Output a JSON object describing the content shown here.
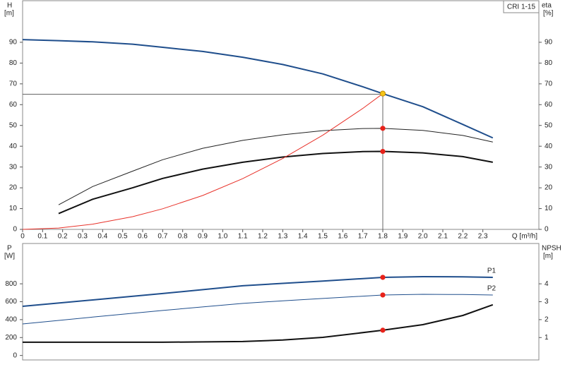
{
  "chart_data": [
    {
      "type": "line",
      "title": "CRI 1-15",
      "ylabel": "H",
      "yunit": "[m]",
      "y2label": "eta",
      "y2unit": "[%]",
      "xlabel": "Q [m³/h]",
      "xlim": [
        0,
        2.58
      ],
      "ylim": [
        0,
        110
      ],
      "y2lim": [
        0,
        110
      ],
      "xticks": [
        0,
        0.1,
        0.2,
        0.3,
        0.4,
        0.5,
        0.6,
        0.7,
        0.8,
        0.9,
        {
          "value": 1,
          "label": "1.0"
        },
        1.1,
        1.2,
        1.3,
        1.4,
        1.5,
        1.6,
        1.7,
        1.8,
        1.9,
        {
          "value": 2,
          "label": "2.0"
        },
        2.1,
        2.2,
        2.3
      ],
      "yticks": [
        0,
        10,
        20,
        30,
        40,
        50,
        60,
        70,
        80,
        90
      ],
      "y2ticks": [
        0,
        10,
        20,
        30,
        40,
        50,
        60,
        70,
        80,
        90
      ],
      "grid": false,
      "x": [
        0,
        0.18,
        0.35,
        0.55,
        0.7,
        0.9,
        1.1,
        1.3,
        1.5,
        1.7,
        1.8,
        2.0,
        2.2,
        2.35
      ],
      "series": [
        {
          "color": "#1f4e8c",
          "width": 2,
          "values": [
            91.3,
            90.8,
            90.2,
            89.1,
            87.6,
            85.6,
            82.8,
            79.3,
            74.8,
            68.6,
            65.3,
            59,
            50.5,
            44
          ]
        },
        {
          "color": "#222222",
          "width": 1,
          "axis": "y2",
          "values": [
            null,
            11.8,
            20.6,
            28,
            33.5,
            39,
            42.8,
            45.5,
            47.5,
            48.5,
            48.6,
            47.6,
            45.2,
            42
          ]
        },
        {
          "color": "#111111",
          "width": 2,
          "axis": "y2",
          "values": [
            null,
            7.6,
            14.5,
            20,
            24.5,
            29,
            32.3,
            34.8,
            36.5,
            37.4,
            37.5,
            36.8,
            35,
            32.3
          ]
        },
        {
          "color": "#e8322a",
          "width": 1,
          "values": [
            0,
            0.65,
            2.5,
            6.1,
            9.9,
            16.3,
            24.4,
            34.1,
            45.3,
            58.2,
            65.3,
            null,
            null,
            null
          ]
        }
      ],
      "crosshair": {
        "x": 1.8,
        "y": 65
      },
      "markers": [
        {
          "x": 1.8,
          "y": 65.3,
          "color": "#f5c518"
        },
        {
          "x": 1.8,
          "y": 48.6,
          "color": "#e8221a"
        },
        {
          "x": 1.8,
          "y": 37.5,
          "color": "#e8221a"
        }
      ]
    },
    {
      "type": "line",
      "ylabel": "P",
      "yunit": "[W]",
      "y2label": "NPSH",
      "y2unit": "[m]",
      "xlim": [
        0,
        2.58
      ],
      "ylim": [
        -50,
        1250
      ],
      "y2lim": [
        -0.25,
        6.25
      ],
      "yticks": [
        0,
        200,
        400,
        600,
        800
      ],
      "y2ticks": [
        1,
        2,
        3,
        4
      ],
      "grid": false,
      "x": [
        0,
        0.35,
        0.7,
        1.1,
        1.3,
        1.5,
        1.8,
        2.0,
        2.2,
        2.35
      ],
      "series": [
        {
          "name": "P1",
          "color": "#1f4e8c",
          "width": 2,
          "values": [
            549,
            620,
            691,
            778,
            805,
            830,
            872,
            880,
            878,
            872
          ]
        },
        {
          "name": "P2",
          "color": "#1f4e8c",
          "width": 1,
          "values": [
            352,
            428,
            502,
            581,
            610,
            636,
            675,
            683,
            680,
            675
          ]
        },
        {
          "color": "#111111",
          "width": 2,
          "axis": "y2",
          "values": [
            0.74,
            0.74,
            0.74,
            0.78,
            0.86,
            1.01,
            1.41,
            1.72,
            2.23,
            2.83
          ]
        }
      ],
      "markers": [
        {
          "x": 1.8,
          "y": 872,
          "color": "#e8221a"
        },
        {
          "x": 1.8,
          "y": 675,
          "color": "#e8221a"
        },
        {
          "x": 1.8,
          "y": 1.41,
          "color": "#e8221a",
          "axis": "y2"
        }
      ]
    }
  ]
}
